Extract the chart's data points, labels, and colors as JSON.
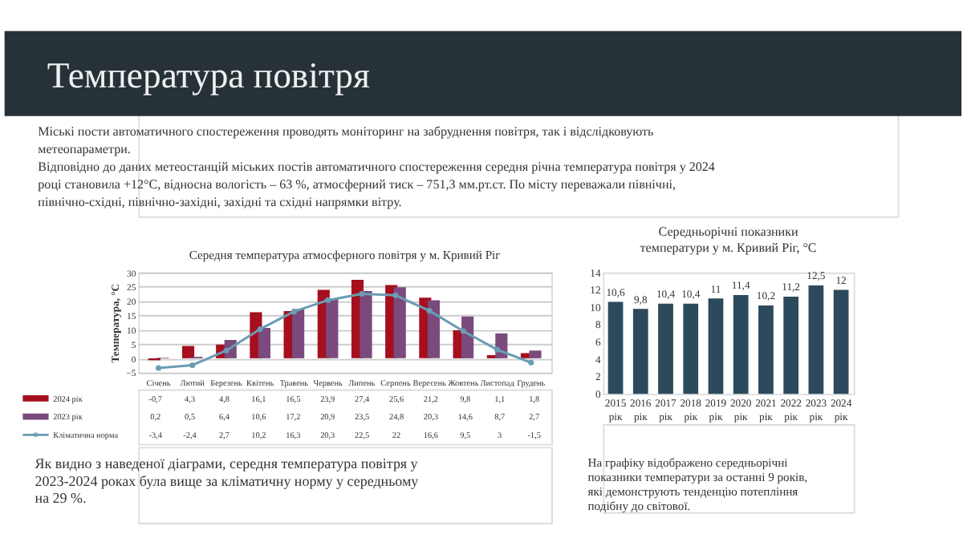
{
  "chart_data": [
    {
      "type": "bar",
      "title": "Середня температура атмосферного повітря  у м. Кривий Ріг",
      "ylabel": "Температура, °С",
      "categories": [
        "Січень",
        "Лютий",
        "Березень",
        "Квітень",
        "Травень",
        "Червень",
        "Липень",
        "Серпень",
        "Вересень",
        "Жовтень",
        "Листопад",
        "Грудень"
      ],
      "series": [
        {
          "name": "2024 рік",
          "type": "bar",
          "color": "#a50f1e",
          "values": [
            -0.7,
            4.3,
            4.8,
            16.1,
            16.5,
            23.9,
            27.4,
            25.6,
            21.2,
            9.8,
            1.1,
            1.8
          ],
          "value_labels": [
            "-0,7",
            "4,3",
            "4,8",
            "16,1",
            "16,5",
            "23,9",
            "27,4",
            "25,6",
            "21,2",
            "9,8",
            "1,1",
            "1,8"
          ]
        },
        {
          "name": "2023 рік",
          "type": "bar",
          "color": "#7b4a7d",
          "values": [
            0.2,
            0.5,
            6.4,
            10.6,
            17.2,
            20.9,
            23.5,
            24.8,
            20.3,
            14.6,
            8.7,
            2.7
          ],
          "value_labels": [
            "0,2",
            "0,5",
            "6,4",
            "10,6",
            "17,2",
            "20,9",
            "23,5",
            "24,8",
            "20,3",
            "14,6",
            "8,7",
            "2,7"
          ]
        },
        {
          "name": "Кліматична норма",
          "type": "line",
          "color": "#6a9db3",
          "marker": "circle",
          "values": [
            -3.4,
            -2.4,
            2.7,
            10.2,
            16.3,
            20.3,
            22.5,
            22,
            16.6,
            9.5,
            3,
            -1.5
          ],
          "value_labels": [
            "-3,4",
            "-2,4",
            "2,7",
            "10,2",
            "16,3",
            "20,3",
            "22,5",
            "22",
            "16,6",
            "9,5",
            "3",
            "-1,5"
          ]
        }
      ],
      "ylim": [
        -5,
        30
      ],
      "yticks": [
        -5,
        0,
        5,
        10,
        15,
        20,
        25,
        30
      ],
      "grid": "y",
      "legend": "bottom left",
      "annotations": [
        "Температура повітря",
        "Міські пости автоматичного спостереження проводять моніторинг на забруднення повітря, так і відслідковують метеопараметри.",
        "Відповідно до даних метеостанцій міських постів автоматичного спостереження середня річна температура повітря у 2024 році становила +12°С, відносна вологість – 63 %, атмосферний тиск – 751,3 мм.рт.ст. По місту переважали північні, північно-східні, північно-західні, західні та східні напрямки вітру.",
        "Як видно з наведеної діаграми, середня температура повітря у 2023-2024 роках була вище за кліматичну норму у середньому на 29 %."
      ]
    },
    {
      "type": "bar",
      "title": "Середньорічні показники температури у м. Кривий Ріг, °С",
      "categories": [
        "2015 рік",
        "2016 рік",
        "2017 рік",
        "2018 рік",
        "2019 рік",
        "2020 рік",
        "2021 рік",
        "2022 рік",
        "2023 рік",
        "2024 рік"
      ],
      "values": [
        10.6,
        9.8,
        10.4,
        10.4,
        11,
        11.4,
        10.2,
        11.2,
        12.5,
        12
      ],
      "color": "#2c4a5c",
      "value_labels": [
        "10,6",
        "9,8",
        "10,4",
        "10,4",
        "11",
        "11,4",
        "10,2",
        "11,2",
        "12,5",
        "12"
      ],
      "ylim": [
        0,
        14
      ],
      "yticks": [
        0,
        2,
        4,
        6,
        8,
        10,
        12,
        14
      ],
      "annotations": [
        "На графіку відображено середньорічні показники температури за останні 9 років, які демонструють тенденцію потепління подібну до світової."
      ]
    }
  ]
}
